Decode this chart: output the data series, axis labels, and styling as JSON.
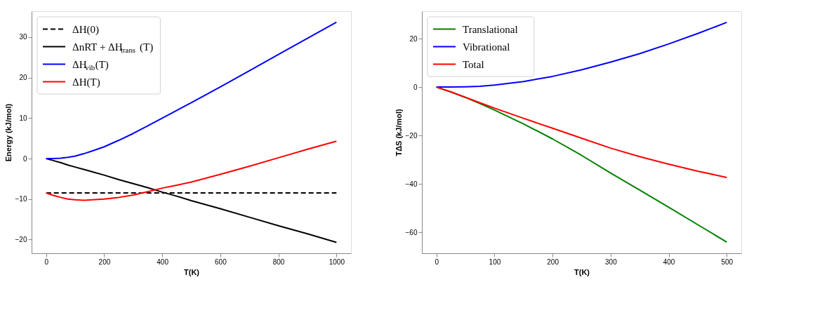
{
  "chart_data": [
    {
      "type": "line",
      "xlabel": "T(K)",
      "ylabel": "Energy (kJ/mol)",
      "xlim": [
        -50,
        1050
      ],
      "ylim": [
        -23.4,
        36.4
      ],
      "xticks": [
        0,
        200,
        400,
        600,
        800,
        1000
      ],
      "yticks": [
        -20,
        -10,
        0,
        10,
        20,
        30
      ],
      "legend": "top left",
      "x": [
        0,
        25,
        50,
        75,
        100,
        130,
        160,
        200,
        250,
        300,
        350,
        400,
        450,
        500,
        600,
        700,
        800,
        900,
        1000
      ],
      "series": [
        {
          "name": "ΔH(0)",
          "color": "#000000",
          "line_style": "dashed",
          "values": [
            -8.5,
            -8.5,
            -8.5,
            -8.5,
            -8.5,
            -8.5,
            -8.5,
            -8.5,
            -8.5,
            -8.5,
            -8.5,
            -8.5,
            -8.5,
            -8.5,
            -8.5,
            -8.5,
            -8.5,
            -8.5,
            -8.5
          ]
        },
        {
          "name": "ΔnRT + ΔH$_{trans}$(T)",
          "color": "#000000",
          "values": [
            0,
            -0.5,
            -1.0,
            -1.6,
            -2.1,
            -2.7,
            -3.3,
            -4.1,
            -5.2,
            -6.2,
            -7.2,
            -8.3,
            -9.3,
            -10.4,
            -12.4,
            -14.5,
            -16.6,
            -18.6,
            -20.7
          ]
        },
        {
          "name": "ΔH$_{vib}$(T)",
          "color": "#0000ff",
          "values": [
            0,
            0,
            0.1,
            0.3,
            0.6,
            1.2,
            1.9,
            2.9,
            4.5,
            6.2,
            8.1,
            10.0,
            11.9,
            13.8,
            17.7,
            21.7,
            25.7,
            29.7,
            33.7
          ]
        },
        {
          "name": "ΔH(T)",
          "color": "#ff0000",
          "values": [
            -8.5,
            -9.1,
            -9.6,
            -10.0,
            -10.2,
            -10.3,
            -10.2,
            -10.0,
            -9.6,
            -9.0,
            -8.2,
            -7.3,
            -6.6,
            -5.8,
            -3.9,
            -1.9,
            0.2,
            2.3,
            4.3
          ]
        }
      ]
    },
    {
      "type": "line",
      "xlabel": "T(K)",
      "ylabel": "TΔS (kJ/mol)",
      "xlim": [
        -25,
        525
      ],
      "ylim": [
        -68.6,
        31.3
      ],
      "xticks": [
        0,
        100,
        200,
        300,
        400,
        500
      ],
      "yticks": [
        -60,
        -40,
        -20,
        0,
        20
      ],
      "legend": "top left",
      "x": [
        0,
        25,
        50,
        75,
        100,
        150,
        200,
        250,
        300,
        350,
        400,
        450,
        500
      ],
      "series": [
        {
          "name": "Translational",
          "color": "#008000",
          "values": [
            0,
            -2.0,
            -4.3,
            -6.8,
            -9.5,
            -15.2,
            -21.4,
            -28.2,
            -35.5,
            -42.5,
            -49.6,
            -56.8,
            -64.0
          ]
        },
        {
          "name": "Vibrational",
          "color": "#0000ff",
          "values": [
            0,
            0,
            0.1,
            0.3,
            0.8,
            2.3,
            4.4,
            7.1,
            10.3,
            13.8,
            17.8,
            22.1,
            26.7
          ]
        },
        {
          "name": "Total",
          "color": "#ff0000",
          "values": [
            0,
            -2.0,
            -4.2,
            -6.5,
            -8.7,
            -12.9,
            -17.0,
            -21.1,
            -25.2,
            -28.7,
            -31.8,
            -34.7,
            -37.3
          ]
        }
      ]
    }
  ]
}
